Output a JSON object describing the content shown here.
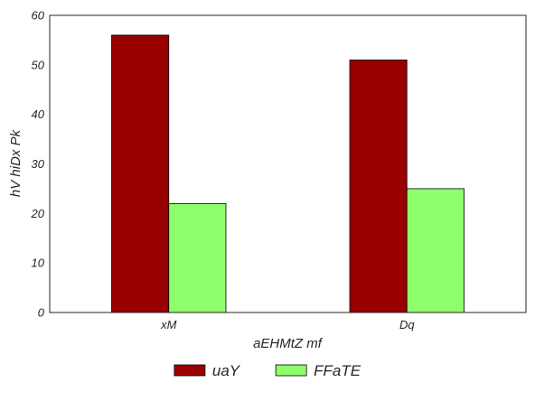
{
  "chart_data": {
    "type": "bar",
    "categories": [
      "xM",
      "Dq"
    ],
    "series": [
      {
        "name": "uaY",
        "values": [
          56,
          51
        ],
        "color": "#990000"
      },
      {
        "name": "FFaTE",
        "values": [
          22,
          25
        ],
        "color": "#8cff6a"
      }
    ],
    "xlabel": "aEHMtZ mf",
    "ylabel": "hV hiDx Pk",
    "ylim": [
      0,
      60
    ],
    "yticks": [
      0,
      10,
      20,
      30,
      40,
      50,
      60
    ],
    "grid": false,
    "legend_position": "bottom-center"
  }
}
